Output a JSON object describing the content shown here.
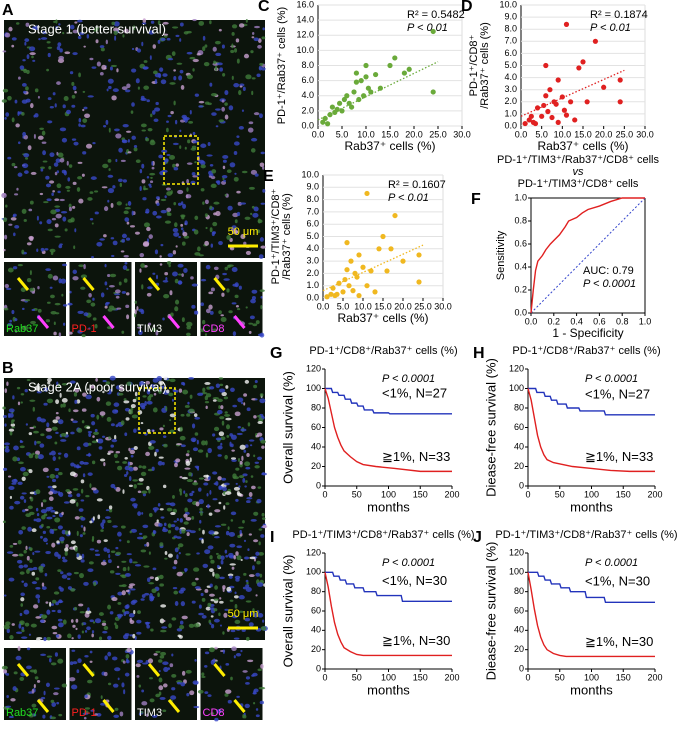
{
  "images": [
    {
      "letter": "A",
      "caption": "Stage 1 (better survival)",
      "scale": "50 μm",
      "markers": [
        "Rab37",
        "PD-1",
        "TIM3",
        "CD8"
      ]
    },
    {
      "letter": "B",
      "caption": "Stage 2A (poor survival)",
      "scale": "50 μm",
      "markers": [
        "Rab37",
        "PD-1",
        "TIM3",
        "CD8"
      ]
    }
  ],
  "chart_data": [
    {
      "type": "scatter",
      "panel": "C",
      "ylabel": [
        "PD-1⁺/Rab37⁺ cells (%)"
      ],
      "xlabel": "Rab37⁺ cells (%)",
      "annotations": [
        "R² = 0.5482",
        "P < 0.01"
      ],
      "color": "#6aaa3a",
      "x": [
        1,
        1.5,
        2,
        2.5,
        3,
        3.5,
        4,
        4.5,
        5,
        5.5,
        6,
        6.5,
        7,
        7.5,
        8,
        8.5,
        9,
        9.5,
        10,
        10.5,
        11,
        12,
        13,
        15,
        16,
        18,
        19,
        24,
        24,
        10,
        8
      ],
      "values": [
        0.5,
        1,
        0.3,
        1.5,
        2.5,
        1.8,
        2.2,
        3,
        2,
        3.5,
        4,
        3,
        2.5,
        4.5,
        5.8,
        3.5,
        6,
        4,
        6.5,
        5,
        4.5,
        6.8,
        5,
        8,
        9,
        7,
        7.5,
        4.5,
        12.5,
        8,
        7
      ],
      "trend": {
        "x": [
          0,
          25
        ],
        "y": [
          0.8,
          8.5
        ]
      },
      "xlim": [
        0,
        30
      ],
      "xticks": [
        {
          "value": 0,
          "label": "0.0"
        },
        {
          "value": 5,
          "label": "5.0"
        },
        {
          "value": 10,
          "label": "10.0"
        },
        {
          "value": 15,
          "label": "15.0"
        },
        {
          "value": 20,
          "label": "20.0"
        },
        {
          "value": 25,
          "label": "25.0"
        },
        {
          "value": 30,
          "label": "30.0"
        }
      ],
      "ylim": [
        0,
        16
      ],
      "yticks": [
        {
          "value": 0,
          "label": "0.0"
        },
        {
          "value": 2,
          "label": "2.0"
        },
        {
          "value": 4,
          "label": "4.0"
        },
        {
          "value": 6,
          "label": "6.0"
        },
        {
          "value": 8,
          "label": "8.0"
        },
        {
          "value": 10,
          "label": "10.0"
        },
        {
          "value": 12,
          "label": "12.0"
        },
        {
          "value": 14,
          "label": "14.0"
        },
        {
          "value": 16,
          "label": "16.0"
        }
      ]
    },
    {
      "type": "scatter",
      "panel": "D",
      "ylabel": [
        "PD-1⁺/CD8⁺",
        "/Rab37⁺ cells (%)"
      ],
      "xlabel": "Rab37⁺ cells (%)",
      "annotations": [
        "R² = 0.1874",
        "P < 0.01"
      ],
      "color": "#e02020",
      "x": [
        1,
        2,
        2.5,
        3,
        4,
        5,
        5.5,
        6,
        6.5,
        7,
        7.5,
        8,
        8.5,
        9,
        10,
        10.5,
        11,
        12,
        13,
        14,
        15,
        16,
        18,
        20,
        24,
        24,
        6,
        9,
        11,
        3.5
      ],
      "values": [
        0.2,
        0.5,
        0.8,
        0.3,
        1.5,
        0.8,
        1.7,
        2.5,
        1.2,
        3,
        0.7,
        2,
        1.8,
        3.8,
        2.4,
        1.3,
        8.4,
        2,
        0.5,
        4.8,
        5.3,
        2,
        7,
        3.2,
        3.8,
        2,
        5,
        0.3,
        0.9,
        0.2
      ],
      "trend": {
        "x": [
          0,
          25
        ],
        "y": [
          0.8,
          4.6
        ]
      },
      "xlim": [
        0,
        30
      ],
      "xticks": [
        {
          "value": 0,
          "label": "0.0"
        },
        {
          "value": 5,
          "label": "5.0"
        },
        {
          "value": 10,
          "label": "10.0"
        },
        {
          "value": 15,
          "label": "15.0"
        },
        {
          "value": 20,
          "label": "20.0"
        },
        {
          "value": 25,
          "label": "25.0"
        },
        {
          "value": 30,
          "label": "30.0"
        }
      ],
      "ylim": [
        0,
        10
      ],
      "yticks": [
        {
          "value": 0,
          "label": "0.0"
        },
        {
          "value": 1,
          "label": "1.0"
        },
        {
          "value": 2,
          "label": "2.0"
        },
        {
          "value": 3,
          "label": "3.0"
        },
        {
          "value": 4,
          "label": "4.0"
        },
        {
          "value": 5,
          "label": "5.0"
        },
        {
          "value": 6,
          "label": "6.0"
        },
        {
          "value": 7,
          "label": "7.0"
        },
        {
          "value": 8,
          "label": "8.0"
        },
        {
          "value": 9,
          "label": "9.0"
        },
        {
          "value": 10,
          "label": "10.0"
        }
      ]
    },
    {
      "type": "scatter",
      "panel": "E",
      "ylabel": [
        "PD-1⁺/TIM3⁺/CD8⁺",
        "/Rab37⁺ cells (%)"
      ],
      "xlabel": "Rab37⁺ cells (%)",
      "annotations": [
        "R² = 0.1607",
        "P < 0.01"
      ],
      "color": "#f0b820",
      "x": [
        1,
        2,
        2.5,
        3,
        4,
        5,
        5.5,
        6,
        6.5,
        7,
        7.5,
        8,
        8.5,
        9,
        10,
        11,
        12,
        13,
        14,
        15,
        16,
        18,
        20,
        24,
        24,
        6,
        9,
        11,
        3.5,
        17
      ],
      "values": [
        0.1,
        0.3,
        0.8,
        0.2,
        1.2,
        0.5,
        1.5,
        2.3,
        1,
        3,
        0.6,
        2,
        1.7,
        3.5,
        2.5,
        8.5,
        2.2,
        0.5,
        4,
        5,
        2.2,
        6.7,
        3,
        3.5,
        1.3,
        4.5,
        0.2,
        1,
        0.3,
        4
      ],
      "trend": {
        "x": [
          0,
          25
        ],
        "y": [
          0.6,
          4.3
        ]
      },
      "xlim": [
        0,
        30
      ],
      "xticks": [
        {
          "value": 0,
          "label": "0.0"
        },
        {
          "value": 5,
          "label": "5.0"
        },
        {
          "value": 10,
          "label": "10.0"
        },
        {
          "value": 15,
          "label": "15.0"
        },
        {
          "value": 20,
          "label": "20.0"
        },
        {
          "value": 25,
          "label": "25.0"
        },
        {
          "value": 30,
          "label": "30.0"
        }
      ],
      "ylim": [
        0,
        10
      ],
      "yticks": [
        {
          "value": 0,
          "label": "0.0"
        },
        {
          "value": 1,
          "label": "1.0"
        },
        {
          "value": 2,
          "label": "2.0"
        },
        {
          "value": 3,
          "label": "3.0"
        },
        {
          "value": 4,
          "label": "4.0"
        },
        {
          "value": 5,
          "label": "5.0"
        },
        {
          "value": 6,
          "label": "6.0"
        },
        {
          "value": 7,
          "label": "7.0"
        },
        {
          "value": 8,
          "label": "8.0"
        },
        {
          "value": 9,
          "label": "9.0"
        },
        {
          "value": 10,
          "label": "10.0"
        }
      ]
    },
    {
      "type": "roc",
      "panel": "F",
      "title": [
        "PD-1⁺/TIM3⁺/Rab37⁺/CD8⁺ cells",
        "vs",
        "PD-1⁺/TIM3⁺/CD8⁺ cells"
      ],
      "ylabel": [
        "Sensitivity"
      ],
      "xlabel": "1 - Specificity",
      "annotations": [
        "AUC: 0.79",
        "P < 0.0001"
      ],
      "color": "#e02020",
      "x": [
        0,
        0.02,
        0.04,
        0.06,
        0.1,
        0.13,
        0.17,
        0.2,
        0.25,
        0.3,
        0.33,
        0.4,
        0.45,
        0.5,
        0.6,
        0.7,
        0.8,
        0.9,
        1
      ],
      "values": [
        0,
        0.2,
        0.37,
        0.45,
        0.5,
        0.55,
        0.6,
        0.63,
        0.68,
        0.75,
        0.8,
        0.83,
        0.87,
        0.9,
        0.93,
        0.97,
        1,
        1,
        1
      ],
      "xlim": [
        0,
        1
      ],
      "xticks": [
        {
          "value": 0,
          "label": "0.0"
        },
        {
          "value": 0.2,
          "label": "0.2"
        },
        {
          "value": 0.4,
          "label": "0.4"
        },
        {
          "value": 0.6,
          "label": "0.6"
        },
        {
          "value": 0.8,
          "label": "0.8"
        },
        {
          "value": 1,
          "label": "1.0"
        }
      ],
      "ylim": [
        0,
        1
      ],
      "yticks": [
        {
          "value": 0,
          "label": "0.0"
        },
        {
          "value": 0.2,
          "label": "0.2"
        },
        {
          "value": 0.4,
          "label": "0.4"
        },
        {
          "value": 0.6,
          "label": "0.6"
        },
        {
          "value": 0.8,
          "label": "0.8"
        },
        {
          "value": 1,
          "label": "1.0"
        }
      ]
    },
    {
      "type": "survival",
      "panel": "G",
      "title": [
        "PD-1⁺/CD8⁺/Rab37⁺ cells (%)"
      ],
      "ylabel": [
        "Overall survival (%)"
      ],
      "xlabel": "months",
      "annotations": [
        "P < 0.0001"
      ],
      "series": [
        {
          "name": "<1%, N=27",
          "color": "#2233bb",
          "x": [
            0,
            10,
            12,
            20,
            22,
            30,
            32,
            40,
            42,
            50,
            52,
            60,
            62,
            75,
            77,
            100,
            102,
            200
          ],
          "values": [
            100,
            100,
            96,
            96,
            93,
            93,
            89,
            89,
            85,
            85,
            82,
            82,
            78,
            78,
            75,
            75,
            74,
            74
          ]
        },
        {
          "name": "≧1%, N=33",
          "color": "#e02020",
          "x": [
            0,
            5,
            10,
            15,
            20,
            25,
            30,
            40,
            50,
            60,
            80,
            110,
            150,
            200
          ],
          "values": [
            100,
            90,
            75,
            60,
            50,
            42,
            36,
            30,
            25,
            22,
            20,
            18,
            15,
            15
          ]
        }
      ],
      "xlim": [
        0,
        200
      ],
      "xticks": [
        0,
        50,
        100,
        150,
        200
      ],
      "ylim": [
        0,
        120
      ],
      "yticks": [
        0,
        20,
        40,
        60,
        80,
        100,
        120
      ]
    },
    {
      "type": "survival",
      "panel": "H",
      "title": [
        "PD-1⁺/CD8⁺/Rab37⁺ cells (%)"
      ],
      "ylabel": [
        "Diease-free survival (%)"
      ],
      "xlabel": "months",
      "annotations": [
        "P < 0.0001"
      ],
      "series": [
        {
          "name": "<1%, N=27",
          "color": "#2233bb",
          "x": [
            0,
            12,
            14,
            25,
            27,
            35,
            37,
            45,
            47,
            60,
            62,
            80,
            82,
            120,
            122,
            200
          ],
          "values": [
            100,
            100,
            96,
            96,
            92,
            92,
            88,
            88,
            84,
            84,
            80,
            80,
            77,
            77,
            73,
            73
          ]
        },
        {
          "name": "≧1%, N=33",
          "color": "#e02020",
          "x": [
            0,
            5,
            10,
            15,
            20,
            25,
            30,
            40,
            55,
            70,
            100,
            130,
            160,
            200
          ],
          "values": [
            100,
            88,
            70,
            52,
            40,
            32,
            27,
            24,
            22,
            20,
            18,
            16,
            15,
            15
          ]
        }
      ],
      "xlim": [
        0,
        200
      ],
      "xticks": [
        0,
        50,
        100,
        150,
        200
      ],
      "ylim": [
        0,
        120
      ],
      "yticks": [
        0,
        20,
        40,
        60,
        80,
        100,
        120
      ]
    },
    {
      "type": "survival",
      "panel": "I",
      "title": [
        "PD-1⁺/TIM3⁺/CD8⁺/Rab37⁺ cells (%)"
      ],
      "ylabel": [
        "Overall survival (%)"
      ],
      "xlabel": "months",
      "annotations": [
        "P < 0.0001"
      ],
      "series": [
        {
          "name": "<1%, N=30",
          "color": "#2233bb",
          "x": [
            0,
            12,
            14,
            22,
            24,
            32,
            34,
            45,
            47,
            60,
            62,
            80,
            82,
            120,
            122,
            200
          ],
          "values": [
            100,
            100,
            96,
            96,
            92,
            92,
            88,
            88,
            84,
            84,
            80,
            80,
            76,
            76,
            70,
            70
          ]
        },
        {
          "name": "≧1%, N=30",
          "color": "#e02020",
          "x": [
            0,
            5,
            10,
            15,
            20,
            25,
            30,
            40,
            50,
            60,
            200
          ],
          "values": [
            100,
            85,
            65,
            48,
            36,
            28,
            22,
            18,
            15,
            14,
            14
          ]
        }
      ],
      "xlim": [
        0,
        200
      ],
      "xticks": [
        0,
        50,
        100,
        150,
        200
      ],
      "ylim": [
        0,
        120
      ],
      "yticks": [
        0,
        20,
        40,
        60,
        80,
        100,
        120
      ]
    },
    {
      "type": "survival",
      "panel": "J",
      "title": [
        "PD-1⁺/TIM3⁺/CD8⁺/Rab37⁺ cells (%)"
      ],
      "ylabel": [
        "Diease-free survival (%)"
      ],
      "xlabel": "months",
      "annotations": [
        "P < 0.0001"
      ],
      "series": [
        {
          "name": "<1%, N=30",
          "color": "#2233bb",
          "x": [
            0,
            15,
            17,
            25,
            27,
            35,
            37,
            50,
            52,
            65,
            67,
            90,
            92,
            120,
            122,
            200
          ],
          "values": [
            100,
            100,
            96,
            96,
            92,
            92,
            88,
            88,
            84,
            84,
            80,
            80,
            74,
            74,
            69,
            69
          ]
        },
        {
          "name": "≧1%, N=30",
          "color": "#e02020",
          "x": [
            0,
            5,
            10,
            15,
            20,
            25,
            30,
            40,
            50,
            60,
            200
          ],
          "values": [
            100,
            82,
            62,
            45,
            33,
            25,
            20,
            16,
            14,
            13,
            13
          ]
        }
      ],
      "xlim": [
        0,
        200
      ],
      "xticks": [
        0,
        50,
        100,
        150,
        200
      ],
      "ylim": [
        0,
        120
      ],
      "yticks": [
        0,
        20,
        40,
        60,
        80,
        100,
        120
      ]
    }
  ]
}
